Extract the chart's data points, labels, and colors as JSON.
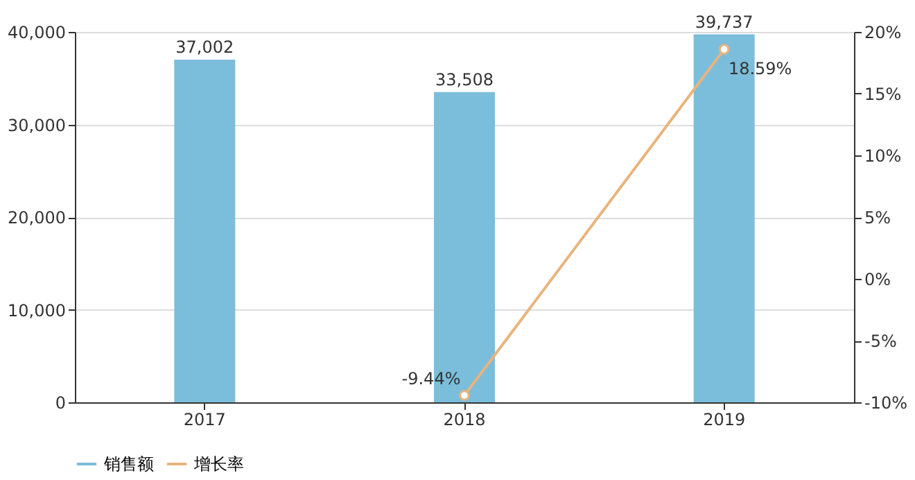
{
  "chart_data": {
    "type": "bar",
    "categories": [
      "2017",
      "2018",
      "2019"
    ],
    "series": [
      {
        "name": "销售额",
        "color": "#7bbedb",
        "values": [
          37002,
          33508,
          39737
        ],
        "value_labels": [
          "37,002",
          "33,508",
          "39,737"
        ]
      },
      {
        "name": "增长率",
        "type": "line",
        "axis": "y2",
        "color": "#e8b47e",
        "values": [
          null,
          -9.44,
          18.59
        ],
        "value_labels": [
          null,
          "-9.44%",
          "18.59%"
        ]
      }
    ],
    "ylim": [
      0,
      40000
    ],
    "yticks": [
      {
        "value": 0,
        "label": "0"
      },
      {
        "value": 10000,
        "label": "10,000"
      },
      {
        "value": 20000,
        "label": "20,000"
      },
      {
        "value": 30000,
        "label": "30,000"
      },
      {
        "value": 40000,
        "label": "40,000"
      }
    ],
    "y2lim": [
      -10,
      20
    ],
    "y2ticks": [
      {
        "value": -10,
        "label": "-10%"
      },
      {
        "value": -5,
        "label": "-5%"
      },
      {
        "value": 0,
        "label": "0%"
      },
      {
        "value": 5,
        "label": "5%"
      },
      {
        "value": 10,
        "label": "10%"
      },
      {
        "value": 15,
        "label": "15%"
      },
      {
        "value": 20,
        "label": "20%"
      }
    ],
    "grid": "y",
    "legend": "bottom",
    "marker": "circle",
    "line_style": "solid"
  }
}
